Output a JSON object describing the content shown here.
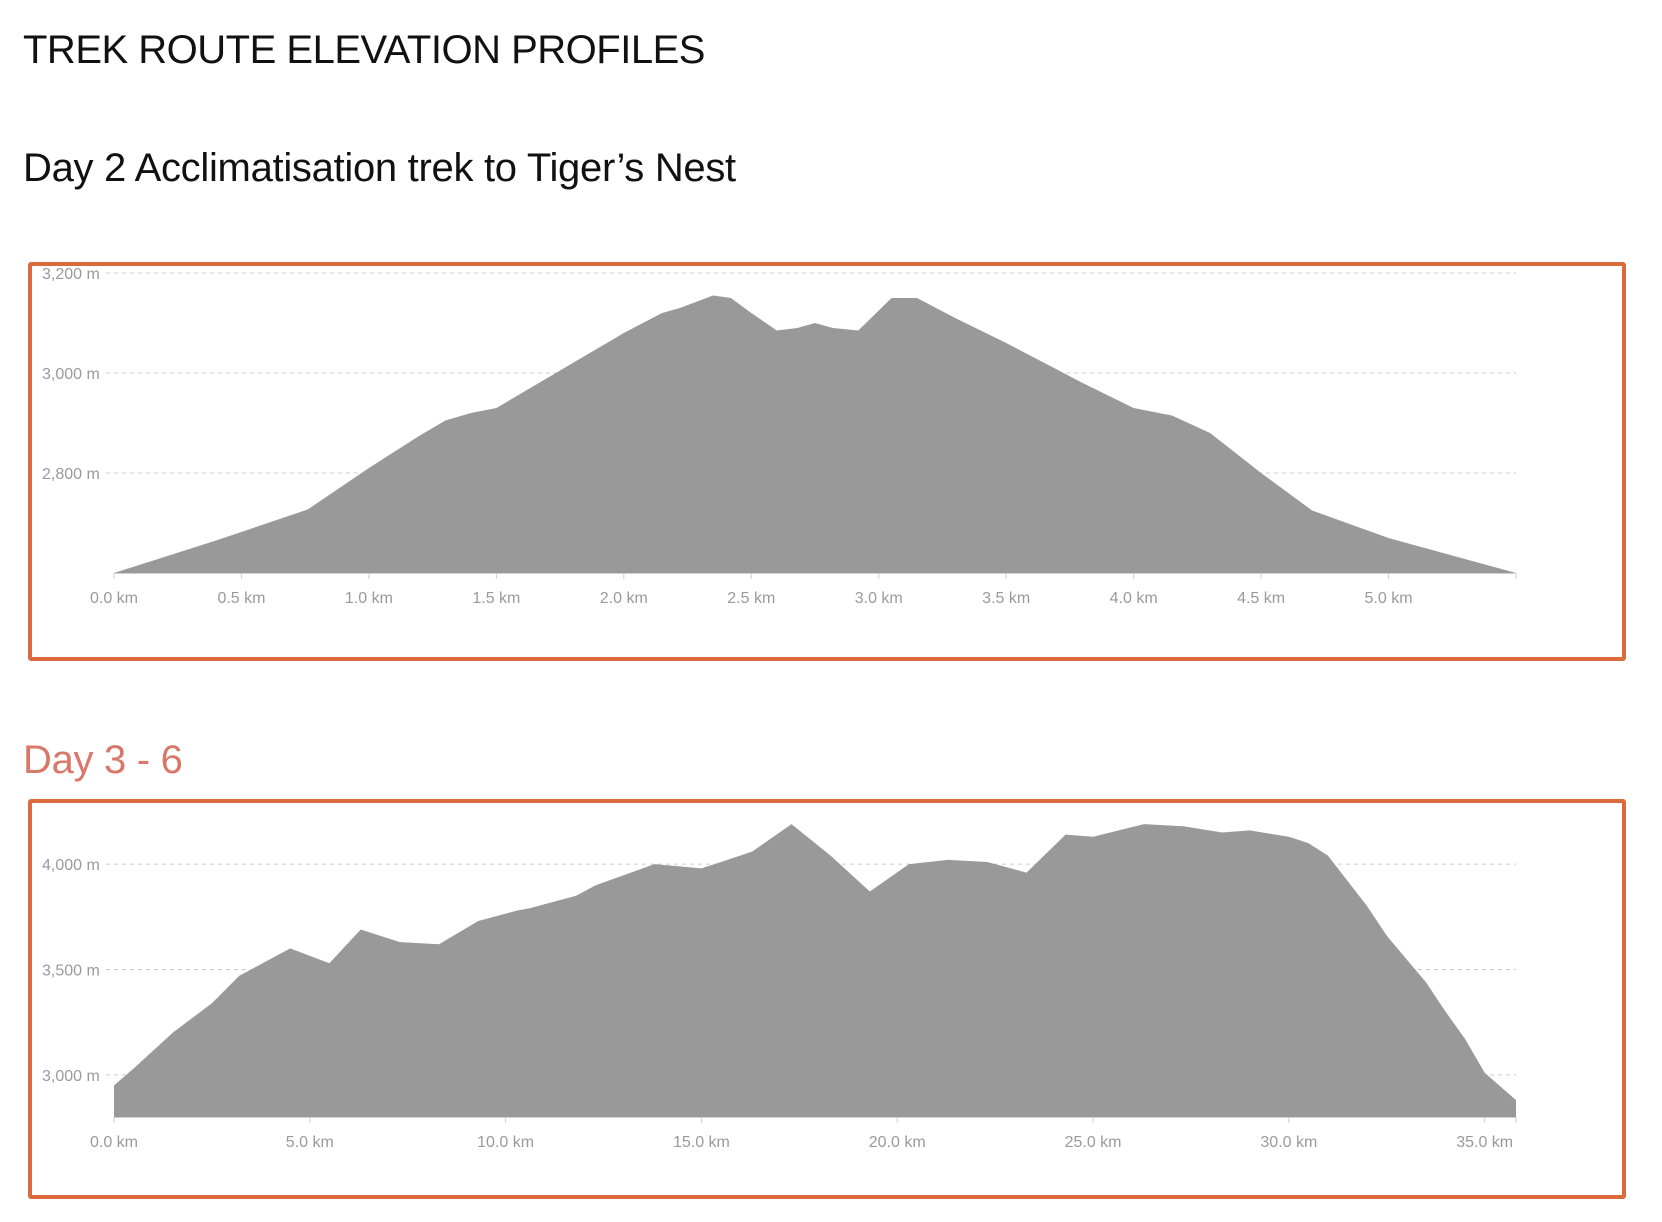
{
  "page": {
    "title": "TREK ROUTE ELEVATION PROFILES"
  },
  "sections": [
    {
      "title": "Day 2 Acclimatisation trek to Tiger’s Nest",
      "accent": "#111111"
    },
    {
      "title": "Day 3 - 6",
      "accent": "#d9786a"
    }
  ],
  "colors": {
    "frame": "#db6a3c",
    "area": "#999999",
    "grid": "#cccccc",
    "ticks": "#9a9a9a"
  },
  "chart_data": [
    {
      "type": "area",
      "title": "",
      "xlabel": "",
      "ylabel": "",
      "xlim": [
        0,
        5.5
      ],
      "ylim": [
        2600,
        3200
      ],
      "grid": true,
      "x_ticks": [
        "0.0 km",
        "0.5 km",
        "1.0 km",
        "1.5 km",
        "2.0 km",
        "2.5 km",
        "3.0 km",
        "3.5 km",
        "4.0 km",
        "4.5 km",
        "5.0 km"
      ],
      "y_ticks": [
        "2,800 m",
        "3,000 m",
        "3,200 m"
      ],
      "x": [
        0.0,
        0.4,
        0.76,
        1.0,
        1.2,
        1.3,
        1.4,
        1.5,
        1.8,
        2.0,
        2.15,
        2.22,
        2.35,
        2.42,
        2.5,
        2.6,
        2.68,
        2.75,
        2.82,
        2.92,
        3.05,
        3.15,
        3.3,
        3.5,
        3.8,
        4.0,
        4.15,
        4.3,
        4.5,
        4.7,
        5.0,
        5.5
      ],
      "y": [
        2600,
        2665,
        2727,
        2810,
        2875,
        2905,
        2920,
        2930,
        3020,
        3080,
        3120,
        3130,
        3155,
        3150,
        3120,
        3085,
        3090,
        3100,
        3090,
        3085,
        3150,
        3150,
        3110,
        3060,
        2980,
        2930,
        2915,
        2880,
        2800,
        2725,
        2670,
        2600
      ]
    },
    {
      "type": "area",
      "title": "",
      "xlabel": "",
      "ylabel": "",
      "xlim": [
        0,
        35.8
      ],
      "ylim": [
        2800,
        4200
      ],
      "grid": true,
      "x_ticks": [
        "0.0 km",
        "5.0 km",
        "10.0 km",
        "15.0 km",
        "20.0 km",
        "25.0 km",
        "30.0 km",
        "35.0 km"
      ],
      "y_ticks": [
        "3,000 m",
        "3,500 m",
        "4,000 m"
      ],
      "x": [
        0.0,
        0.5,
        1.5,
        2.5,
        3.2,
        3.5,
        4.5,
        5.5,
        6.3,
        7.3,
        8.3,
        9.3,
        10.3,
        10.6,
        11.8,
        12.3,
        13.8,
        15.0,
        15.5,
        16.3,
        17.3,
        18.3,
        19.3,
        20.3,
        21.3,
        22.3,
        23.3,
        24.3,
        25.0,
        26.3,
        27.3,
        28.3,
        29.0,
        30.0,
        30.5,
        31.0,
        31.5,
        32.0,
        32.5,
        33.0,
        33.5,
        34.0,
        34.5,
        35.0,
        35.8
      ],
      "y": [
        2950,
        3030,
        3200,
        3340,
        3470,
        3500,
        3600,
        3530,
        3690,
        3630,
        3620,
        3730,
        3780,
        3790,
        3850,
        3900,
        4000,
        3980,
        4010,
        4060,
        4190,
        4040,
        3870,
        4000,
        4020,
        4010,
        3960,
        4140,
        4130,
        4190,
        4180,
        4150,
        4160,
        4130,
        4100,
        4040,
        3920,
        3800,
        3660,
        3550,
        3440,
        3300,
        3170,
        3010,
        2880
      ]
    }
  ]
}
